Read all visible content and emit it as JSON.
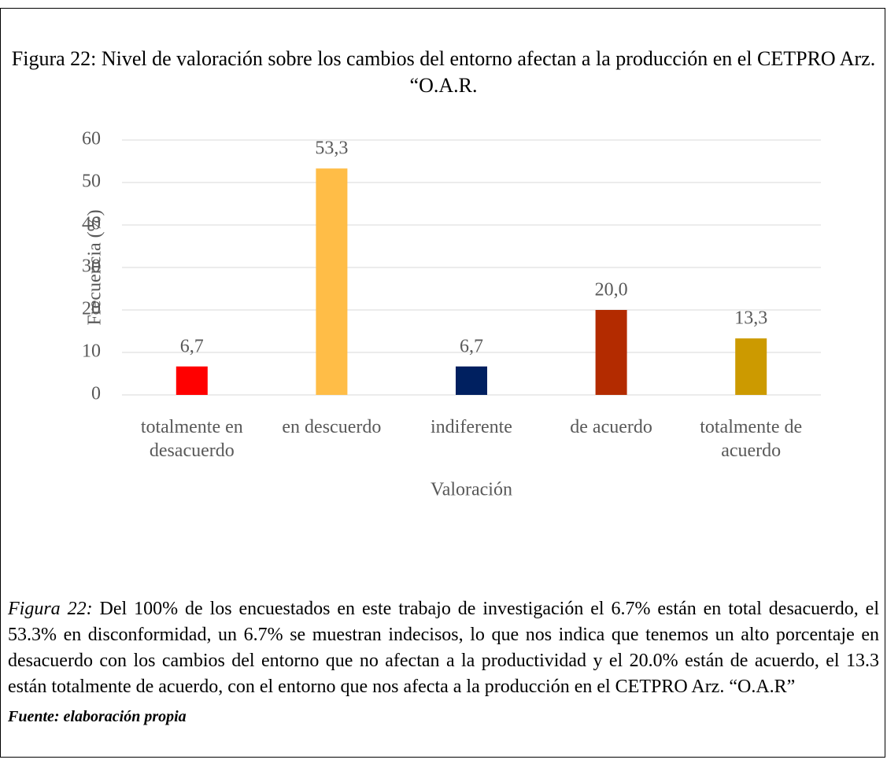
{
  "chart_data": {
    "type": "bar",
    "title": "Figura 22: Nivel de valoración sobre los cambios del entorno afectan a la producción en el CETPRO Arz. “O.A.R.",
    "categories": [
      "totalmente en desacuerdo",
      "en descuerdo",
      "indiferente",
      "de acuerdo",
      "totalmente de acuerdo"
    ],
    "values": [
      6.7,
      53.3,
      6.7,
      20.0,
      13.3
    ],
    "value_labels": [
      "6,7",
      "53,3",
      "6,7",
      "20,0",
      "13,3"
    ],
    "colors": [
      "#ff0000",
      "#ffbd47",
      "#002060",
      "#b32b00",
      "#cc9a00"
    ],
    "ylim": [
      0,
      60
    ],
    "yticks": [
      0,
      10,
      20,
      30,
      40,
      50,
      60
    ],
    "grid": true,
    "ylabel": "Frecuencia (%)",
    "xlabel": "Valoración"
  },
  "caption": {
    "label": "Figura 22:",
    "text": " Del 100% de los encuestados en este trabajo de investigación el 6.7% están en total desacuerdo, el 53.3% en disconformidad, un 6.7% se muestran indecisos, lo que nos indica que tenemos un alto porcentaje en desacuerdo con los cambios del entorno que no afectan a la productividad y el 20.0% están de acuerdo, el 13.3 están totalmente de acuerdo, con el entorno que nos afecta a la producción en el CETPRO Arz. “O.A.R”"
  },
  "source": "Fuente: elaboración propia"
}
